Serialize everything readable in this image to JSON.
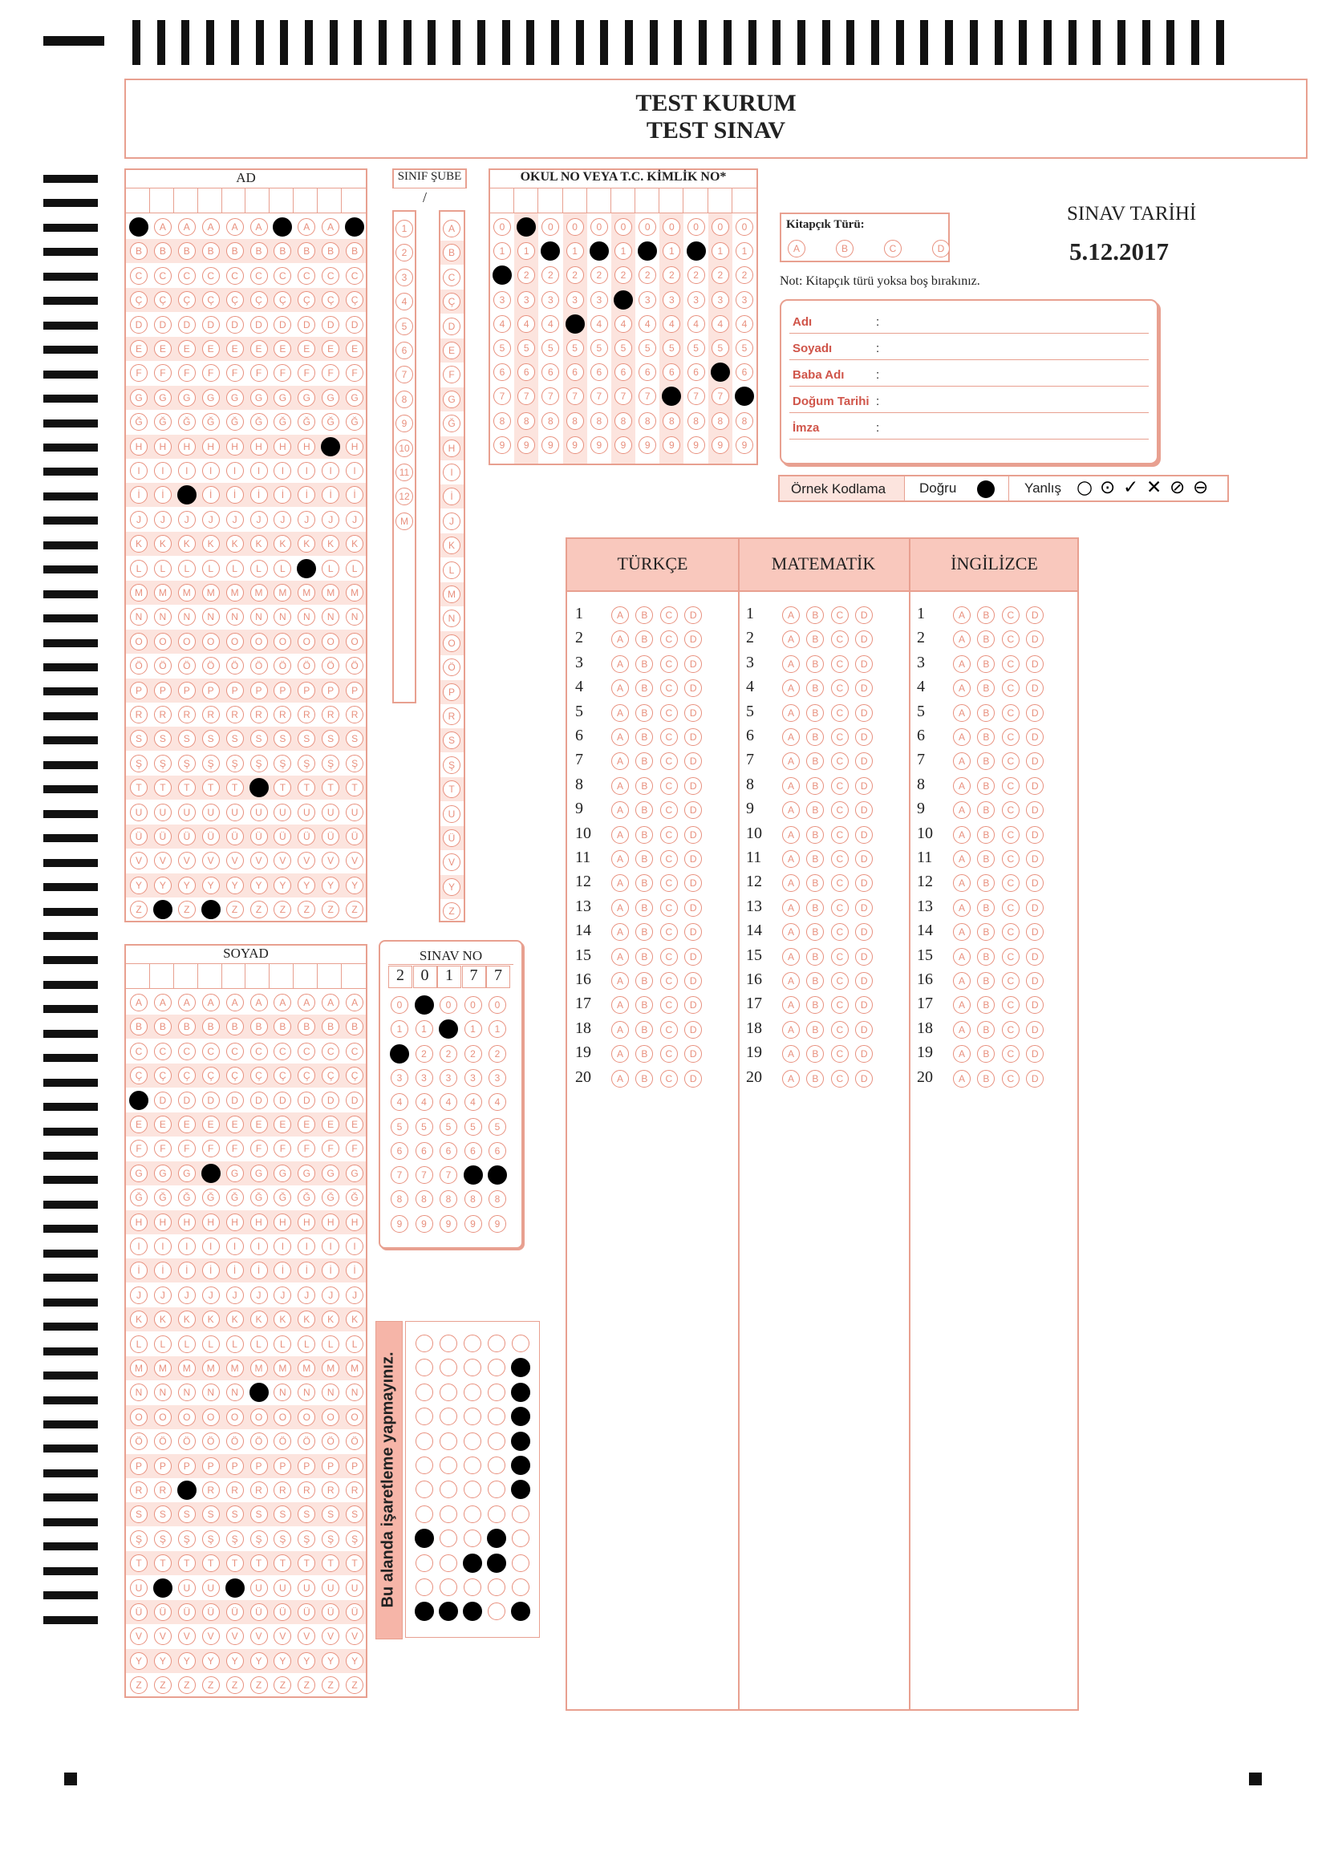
{
  "header": {
    "institution": "TEST KURUM",
    "exam": "TEST SINAV"
  },
  "sections": {
    "ad": "AD",
    "soyad": "SOYAD",
    "sinif_sube": "SINIF ŞUBE",
    "sinif_sep": "/",
    "okul_no": "OKUL NO VEYA T.C. KİMLİK NO*",
    "sinav_no": "SINAV NO",
    "sinav_no_digits": [
      "2",
      "0",
      "1",
      "7",
      "7"
    ]
  },
  "booklet": {
    "label": "Kitapçık Türü:",
    "options": [
      "A",
      "B",
      "C",
      "D"
    ],
    "note": "Not: Kitapçık türü yoksa boş bırakınız."
  },
  "exam_date": {
    "label": "SINAV TARİHİ",
    "value": "5.12.2017"
  },
  "student_info": {
    "fields": [
      "Adı",
      "Soyadı",
      "Baba Adı",
      "Doğum Tarihi",
      "İmza"
    ],
    "sep": ":"
  },
  "example": {
    "title": "Örnek Kodlama",
    "correct": "Doğru",
    "wrong": "Yanlış",
    "wrong_symbols": [
      "○",
      "⊙",
      "✓",
      "✕",
      "⊘",
      "⊖"
    ]
  },
  "answer_sections": [
    "TÜRKÇE",
    "MATEMATİK",
    "İNGİLİZCE"
  ],
  "answer_options": [
    "A",
    "B",
    "C",
    "D"
  ],
  "question_numbers": [
    "1",
    "2",
    "3",
    "4",
    "5",
    "6",
    "7",
    "8",
    "9",
    "10",
    "11",
    "12",
    "13",
    "14",
    "15",
    "16",
    "17",
    "18",
    "19",
    "20"
  ],
  "letters": [
    "A",
    "B",
    "C",
    "Ç",
    "D",
    "E",
    "F",
    "G",
    "Ğ",
    "H",
    "I",
    "İ",
    "J",
    "K",
    "L",
    "M",
    "N",
    "O",
    "Ö",
    "P",
    "R",
    "S",
    "Ş",
    "T",
    "U",
    "Ü",
    "V",
    "Y",
    "Z"
  ],
  "digits": [
    "0",
    "1",
    "2",
    "3",
    "4",
    "5",
    "6",
    "7",
    "8",
    "9"
  ],
  "sinif_digits": [
    "1",
    "2",
    "3",
    "4",
    "5",
    "6",
    "7",
    "8",
    "9",
    "10",
    "11",
    "12",
    "M"
  ],
  "sube_letters": [
    "A",
    "B",
    "C",
    "Ç",
    "D",
    "E",
    "F",
    "G",
    "Ğ",
    "H",
    "I",
    "İ",
    "J",
    "K",
    "L",
    "M",
    "N",
    "O",
    "Ö",
    "P",
    "R",
    "S",
    "Ş",
    "T",
    "U",
    "Ü",
    "V",
    "Y",
    "Z"
  ],
  "no_mark_text": "Bu alanda işaretleme yapmayınız.",
  "marks": {
    "ad": [
      [
        0,
        0
      ],
      [
        0,
        6
      ],
      [
        0,
        9
      ],
      [
        9,
        8
      ],
      [
        11,
        2
      ],
      [
        14,
        7
      ],
      [
        23,
        5
      ],
      [
        28,
        1
      ],
      [
        28,
        3
      ]
    ],
    "soyad": [
      [
        4,
        0
      ],
      [
        7,
        3
      ],
      [
        16,
        5
      ],
      [
        20,
        2
      ],
      [
        24,
        1
      ],
      [
        24,
        4
      ]
    ],
    "okul_no": [
      [
        0,
        1
      ],
      [
        1,
        2
      ],
      [
        1,
        4
      ],
      [
        1,
        6
      ],
      [
        1,
        8
      ],
      [
        2,
        0
      ],
      [
        3,
        5
      ],
      [
        4,
        3
      ],
      [
        6,
        9
      ],
      [
        7,
        7
      ],
      [
        7,
        10
      ]
    ],
    "sinav_no": [
      [
        0,
        1
      ],
      [
        1,
        2
      ],
      [
        2,
        0
      ],
      [
        7,
        3
      ],
      [
        7,
        4
      ]
    ],
    "grid": [
      [
        1,
        4
      ],
      [
        2,
        4
      ],
      [
        3,
        4
      ],
      [
        4,
        4
      ],
      [
        5,
        4
      ],
      [
        6,
        4
      ],
      [
        8,
        0
      ],
      [
        8,
        3
      ],
      [
        9,
        2
      ],
      [
        9,
        3
      ],
      [
        11,
        0
      ],
      [
        11,
        1
      ],
      [
        11,
        2
      ],
      [
        11,
        4
      ]
    ]
  }
}
